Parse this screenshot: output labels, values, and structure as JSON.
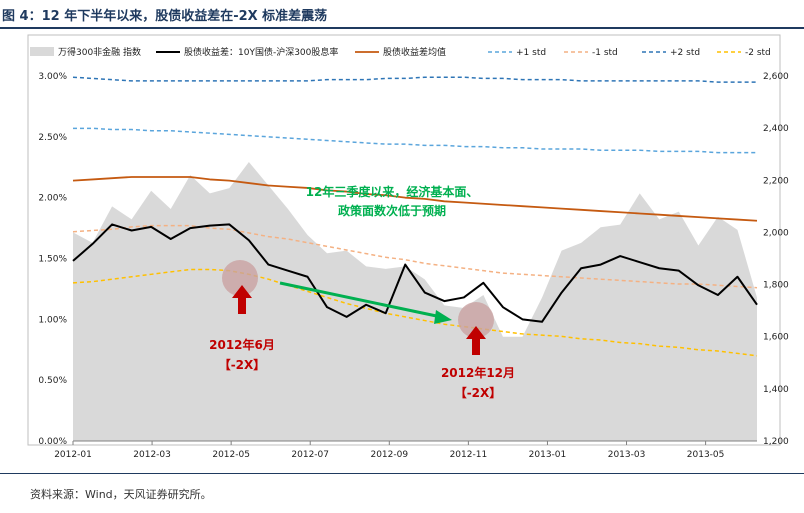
{
  "figure": {
    "title": "图 4：12 年下半年以来，股债收益差在-2X 标准差震荡",
    "source": "资料来源：Wind，天风证券研究所。"
  },
  "colors": {
    "area": "#d9d9d9",
    "spread": "#000000",
    "mean": "#c55a11",
    "p1": "#5aa5dc",
    "m1": "#f4b183",
    "p2": "#2e75b6",
    "m2": "#ffc000",
    "annotation_green": "#00b050",
    "annotation_red": "#c00000",
    "arrow_red": "#c00000",
    "arrow_green": "#00b050"
  },
  "chart_data": {
    "type": "line",
    "x_labels": [
      "2012-01",
      "2012-03",
      "2012-05",
      "2012-07",
      "2012-09",
      "2012-11",
      "2013-01",
      "2013-03",
      "2013-05"
    ],
    "ylim_left": [
      0,
      3
    ],
    "ylim_right": [
      1200,
      2600
    ],
    "left_ticks": [
      "0.00%",
      "0.50%",
      "1.00%",
      "1.50%",
      "2.00%",
      "2.50%",
      "3.00%"
    ],
    "right_ticks": [
      "1,200",
      "1,400",
      "1,600",
      "1,800",
      "2,000",
      "2,200",
      "2,400",
      "2,600"
    ],
    "legend_position": "top",
    "grid": false,
    "x": [
      0,
      0.5,
      1,
      1.5,
      2,
      2.5,
      3,
      3.5,
      4,
      4.5,
      5,
      5.5,
      6,
      6.5,
      7,
      7.5,
      8,
      8.5,
      9,
      9.5,
      10,
      10.5,
      11,
      11.5,
      12,
      12.5,
      13,
      13.5,
      14,
      14.5,
      15,
      15.5,
      16,
      16.5,
      17,
      17.5
    ],
    "series": [
      {
        "name": "万得300非金融 指数",
        "axis": "right",
        "style": "area",
        "values": [
          2000,
          1960,
          2100,
          2050,
          2160,
          2090,
          2220,
          2150,
          2170,
          2270,
          2180,
          2090,
          1990,
          1920,
          1930,
          1870,
          1860,
          1870,
          1820,
          1720,
          1710,
          1760,
          1600,
          1600,
          1750,
          1930,
          1960,
          2020,
          2030,
          2150,
          2050,
          2080,
          1950,
          2060,
          2010,
          1750
        ]
      },
      {
        "name": "股债收益差：10Y国债-沪深300股息率",
        "axis": "left",
        "style": "solid",
        "values": [
          1.48,
          1.62,
          1.78,
          1.73,
          1.76,
          1.66,
          1.75,
          1.77,
          1.78,
          1.65,
          1.45,
          1.4,
          1.35,
          1.1,
          1.02,
          1.12,
          1.05,
          1.45,
          1.22,
          1.15,
          1.18,
          1.3,
          1.1,
          1.0,
          0.98,
          1.22,
          1.42,
          1.45,
          1.52,
          1.47,
          1.42,
          1.4,
          1.28,
          1.2,
          1.35,
          1.12
        ]
      },
      {
        "name": "股债收益差均值",
        "axis": "left",
        "style": "solid",
        "values": [
          2.14,
          2.15,
          2.16,
          2.17,
          2.17,
          2.17,
          2.17,
          2.15,
          2.14,
          2.12,
          2.1,
          2.09,
          2.08,
          2.06,
          2.05,
          2.03,
          2.02,
          2.0,
          1.99,
          1.97,
          1.96,
          1.95,
          1.94,
          1.93,
          1.92,
          1.91,
          1.9,
          1.89,
          1.88,
          1.87,
          1.86,
          1.85,
          1.84,
          1.83,
          1.82,
          1.81
        ]
      },
      {
        "name": "+1 std",
        "axis": "left",
        "style": "dashed",
        "values": [
          2.57,
          2.57,
          2.56,
          2.56,
          2.55,
          2.55,
          2.54,
          2.53,
          2.52,
          2.51,
          2.5,
          2.49,
          2.48,
          2.47,
          2.46,
          2.45,
          2.44,
          2.44,
          2.43,
          2.43,
          2.42,
          2.42,
          2.41,
          2.41,
          2.4,
          2.4,
          2.4,
          2.39,
          2.39,
          2.39,
          2.38,
          2.38,
          2.38,
          2.37,
          2.37,
          2.37
        ]
      },
      {
        "name": "-1 std",
        "axis": "left",
        "style": "dashed",
        "values": [
          1.72,
          1.73,
          1.74,
          1.76,
          1.77,
          1.77,
          1.77,
          1.75,
          1.74,
          1.71,
          1.68,
          1.66,
          1.63,
          1.6,
          1.57,
          1.54,
          1.51,
          1.49,
          1.46,
          1.44,
          1.42,
          1.4,
          1.38,
          1.37,
          1.36,
          1.35,
          1.34,
          1.33,
          1.32,
          1.31,
          1.3,
          1.29,
          1.29,
          1.28,
          1.27,
          1.26
        ]
      },
      {
        "name": "+2 std",
        "axis": "left",
        "style": "dashed",
        "values": [
          2.99,
          2.98,
          2.97,
          2.96,
          2.96,
          2.96,
          2.96,
          2.96,
          2.96,
          2.96,
          2.96,
          2.96,
          2.96,
          2.97,
          2.97,
          2.97,
          2.98,
          2.98,
          2.99,
          2.99,
          2.99,
          2.98,
          2.98,
          2.97,
          2.97,
          2.97,
          2.96,
          2.96,
          2.96,
          2.96,
          2.96,
          2.96,
          2.96,
          2.95,
          2.95,
          2.95
        ]
      },
      {
        "name": "-2 std",
        "axis": "left",
        "style": "dashed",
        "values": [
          1.3,
          1.31,
          1.33,
          1.35,
          1.37,
          1.39,
          1.41,
          1.41,
          1.4,
          1.37,
          1.33,
          1.28,
          1.23,
          1.18,
          1.13,
          1.09,
          1.05,
          1.02,
          0.99,
          0.96,
          0.94,
          0.92,
          0.9,
          0.88,
          0.87,
          0.86,
          0.84,
          0.83,
          0.81,
          0.8,
          0.78,
          0.77,
          0.75,
          0.74,
          0.72,
          0.7
        ]
      }
    ],
    "annotations": {
      "text_main": "12年三季度以来，经济基本面、",
      "text_main2": "政策面数次低于预期",
      "label1_date": "2012年6月",
      "label1_sd": "【-2X】",
      "label2_date": "2012年12月",
      "label2_sd": "【-2X】"
    }
  }
}
